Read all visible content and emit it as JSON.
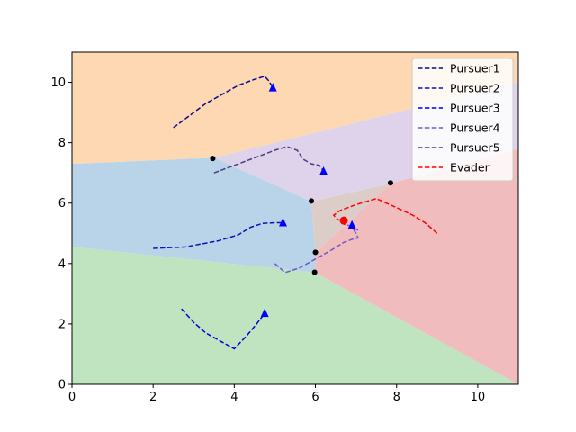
{
  "chart_data": {
    "type": "line",
    "title": "",
    "xlabel": "",
    "ylabel": "",
    "xlim": [
      0,
      11
    ],
    "ylim": [
      0,
      11
    ],
    "x_ticks": [
      0,
      2,
      4,
      6,
      8,
      10
    ],
    "y_ticks": [
      0,
      2,
      4,
      6,
      8,
      10
    ],
    "grid": false,
    "legend_position": "top-right",
    "regions": [
      {
        "color": "#fdd8b3",
        "points": [
          [
            0,
            11
          ],
          [
            11,
            11
          ],
          [
            11,
            10
          ],
          [
            3.5,
            7.5
          ],
          [
            0,
            7.3
          ]
        ]
      },
      {
        "color": "#dfd3eb",
        "points": [
          [
            3.5,
            7.5
          ],
          [
            11,
            10
          ],
          [
            11,
            7.8
          ],
          [
            7.85,
            6.65
          ],
          [
            5.9,
            6.05
          ]
        ]
      },
      {
        "color": "#b9d4e8",
        "points": [
          [
            0,
            7.3
          ],
          [
            3.5,
            7.5
          ],
          [
            5.9,
            6.05
          ],
          [
            6.0,
            4.35
          ],
          [
            6.0,
            3.7
          ],
          [
            0,
            4.55
          ]
        ]
      },
      {
        "color": "#c0e3c0",
        "points": [
          [
            0,
            4.55
          ],
          [
            6.0,
            3.7
          ],
          [
            11,
            0
          ],
          [
            0,
            0
          ]
        ]
      },
      {
        "color": "#dccdc9",
        "points": [
          [
            5.9,
            6.05
          ],
          [
            7.85,
            6.65
          ],
          [
            6.0,
            4.35
          ]
        ]
      },
      {
        "color": "#f1bcbd",
        "points": [
          [
            7.85,
            6.65
          ],
          [
            11,
            7.8
          ],
          [
            11,
            0
          ],
          [
            6.0,
            3.7
          ],
          [
            6.0,
            4.35
          ]
        ]
      }
    ],
    "vertices": [
      [
        3.47,
        7.48
      ],
      [
        5.9,
        6.07
      ],
      [
        7.85,
        6.67
      ],
      [
        6.0,
        4.37
      ],
      [
        5.98,
        3.71
      ]
    ],
    "series": [
      {
        "name": "Pursuer1",
        "color": "#0a0a8a",
        "x": [
          2.5,
          2.9,
          3.3,
          3.7,
          4.1,
          4.5,
          4.75,
          4.85,
          4.95
        ],
        "y": [
          8.5,
          8.9,
          9.3,
          9.6,
          9.9,
          10.1,
          10.2,
          10.05,
          9.82
        ],
        "marker": [
          4.95,
          9.82
        ]
      },
      {
        "name": "Pursuer2",
        "color": "#1010b0",
        "x": [
          2.0,
          2.8,
          3.6,
          4.1,
          4.4,
          4.7,
          5.0,
          5.2
        ],
        "y": [
          4.5,
          4.55,
          4.75,
          4.95,
          5.2,
          5.33,
          5.35,
          5.35
        ],
        "marker": [
          5.2,
          5.35
        ]
      },
      {
        "name": "Pursuer3",
        "color": "#0000dd",
        "x": [
          2.7,
          3.0,
          3.3,
          3.7,
          4.0,
          4.3,
          4.55,
          4.75
        ],
        "y": [
          2.5,
          2.05,
          1.7,
          1.4,
          1.18,
          1.6,
          2.0,
          2.35
        ],
        "marker": [
          4.75,
          2.35
        ]
      },
      {
        "name": "Pursuer4",
        "color": "#6a5acd",
        "x": [
          5.0,
          5.25,
          5.6,
          6.0,
          6.4,
          6.7,
          6.9,
          7.05,
          7.0,
          6.9,
          7.05,
          6.85,
          6.7
        ],
        "y": [
          4.0,
          3.7,
          3.85,
          4.15,
          4.45,
          4.7,
          4.8,
          4.85,
          5.0,
          5.2,
          5.1,
          5.25,
          5.3
        ],
        "marker": [
          6.9,
          5.27
        ]
      },
      {
        "name": "Pursuer5",
        "color": "#483d8b",
        "x": [
          3.5,
          4.0,
          4.5,
          5.0,
          5.3,
          5.55,
          5.7,
          5.9,
          6.1,
          6.2
        ],
        "y": [
          7.0,
          7.25,
          7.5,
          7.75,
          7.87,
          7.75,
          7.45,
          7.3,
          7.25,
          7.05
        ],
        "marker": [
          6.2,
          7.05
        ]
      },
      {
        "name": "Evader",
        "color": "#ff0000",
        "x": [
          9.0,
          8.7,
          8.4,
          8.0,
          7.5,
          7.0,
          6.6,
          6.45,
          6.55,
          6.7
        ],
        "y": [
          5.0,
          5.35,
          5.6,
          5.85,
          6.15,
          5.95,
          5.75,
          5.6,
          5.45,
          5.42
        ],
        "marker": [
          6.7,
          5.42
        ]
      }
    ]
  }
}
